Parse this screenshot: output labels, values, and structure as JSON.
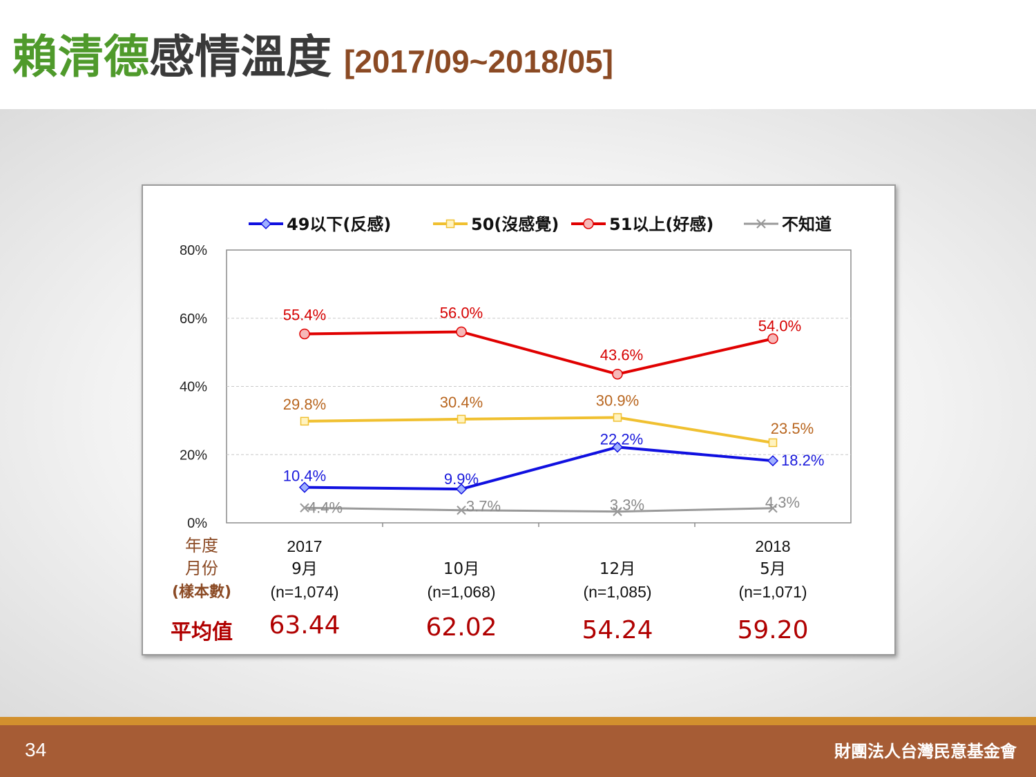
{
  "title": {
    "name": "賴清德",
    "rest": "感情溫度",
    "range": "[2017/09~2018/05]"
  },
  "footer": {
    "page_number": "34",
    "organization": "財團法人台灣民意基金會"
  },
  "colors": {
    "title_green": "#4f9a2b",
    "title_brown": "#8b4a24",
    "footer_brown": "#a65c35",
    "footer_stripe": "#d2902e",
    "series_blue": "#1010e0",
    "series_yellow": "#f0c030",
    "series_red": "#e00000",
    "series_gray": "#999999",
    "label_blue": "#1a1adc",
    "label_brown": "#b8651e",
    "label_red": "#d60000",
    "label_gray": "#8a8a8a",
    "average_red": "#b00000",
    "row_label_brown": "#8b4a24"
  },
  "chart_data": {
    "type": "line",
    "ylim": [
      0,
      80
    ],
    "yticks": [
      "0%",
      "20%",
      "40%",
      "60%",
      "80%"
    ],
    "grid": "horizontal dashed",
    "legend": "top",
    "series": [
      {
        "name": "49以下(反感)",
        "marker": "diamond",
        "values": [
          10.4,
          9.9,
          22.2,
          18.2
        ],
        "labels": [
          "10.4%",
          "9.9%",
          "22.2%",
          "18.2%"
        ]
      },
      {
        "name": "50(沒感覺)",
        "marker": "square",
        "values": [
          29.8,
          30.4,
          30.9,
          23.5
        ],
        "labels": [
          "29.8%",
          "30.4%",
          "30.9%",
          "23.5%"
        ]
      },
      {
        "name": "51以上(好感)",
        "marker": "circle",
        "values": [
          55.4,
          56.0,
          43.6,
          54.0
        ],
        "labels": [
          "55.4%",
          "56.0%",
          "43.6%",
          "54.0%"
        ]
      },
      {
        "name": "不知道",
        "marker": "x",
        "values": [
          4.4,
          3.7,
          3.3,
          4.3
        ],
        "labels": [
          "4.4%",
          "3.7%",
          "3.3%",
          "4.3%"
        ]
      }
    ],
    "row_labels": {
      "year": "年度",
      "month": "月份",
      "sample": "(樣本數)",
      "average": "平均值"
    },
    "categories": [
      {
        "year": "2017",
        "month": "9月",
        "sample": "(n=1,074)",
        "average": "63.44"
      },
      {
        "year": "",
        "month": "10月",
        "sample": "(n=1,068)",
        "average": "62.02"
      },
      {
        "year": "",
        "month": "12月",
        "sample": "(n=1,085)",
        "average": "54.24"
      },
      {
        "year": "2018",
        "month": "5月",
        "sample": "(n=1,071)",
        "average": "59.20"
      }
    ]
  }
}
